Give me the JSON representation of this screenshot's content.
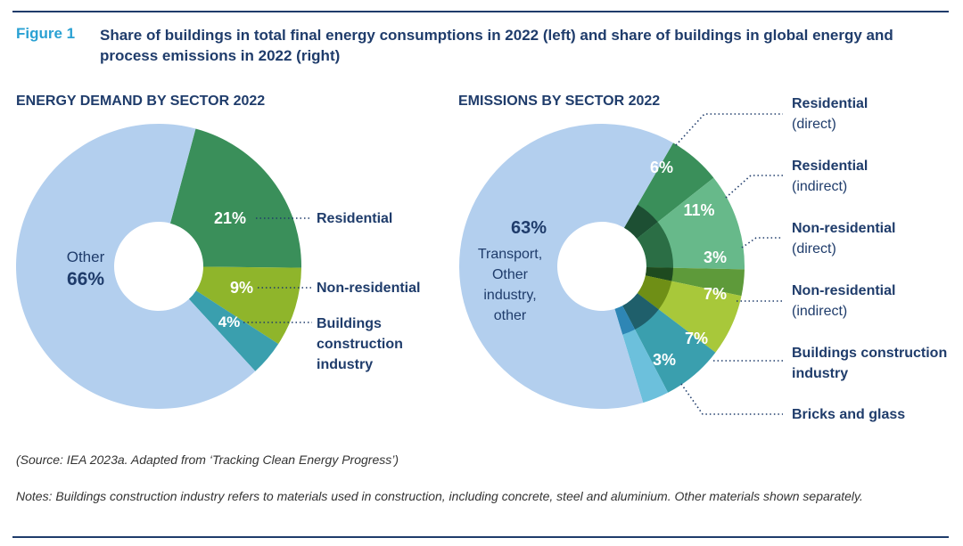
{
  "figure": {
    "label": "Figure 1",
    "title": "Share of buildings in total final energy consumptions in 2022 (left) and share of buildings in global energy and process emissions in 2022 (right)"
  },
  "chart_data": [
    {
      "type": "pie",
      "title": "ENERGY DEMAND  BY SECTOR 2022",
      "slices": [
        {
          "label": "Residential",
          "value": 21,
          "value_label": "21%",
          "color": "#3a8f5a"
        },
        {
          "label": "Non-residential",
          "value": 9,
          "value_label": "9%",
          "color": "#8fb52b"
        },
        {
          "label": "Buildings construction industry",
          "value": 4,
          "value_label": "4%",
          "color": "#3a9fae"
        },
        {
          "label": "Other",
          "value": 66,
          "value_label": "66%",
          "color": "#b3cfee"
        }
      ]
    },
    {
      "type": "pie",
      "title": "EMISSIONS BY SECTOR 2022",
      "slices": [
        {
          "label": "Residential (direct)",
          "value": 6,
          "value_label": "6%",
          "color": "#3a8f5a"
        },
        {
          "label": "Residential (indirect)",
          "value": 11,
          "value_label": "11%",
          "color": "#67b98a"
        },
        {
          "label": "Non-residential (direct)",
          "value": 3,
          "value_label": "3%",
          "color": "#5e9a3a"
        },
        {
          "label": "Non-residential (indirect)",
          "value": 7,
          "value_label": "7%",
          "color": "#a8c83a"
        },
        {
          "label": "Buildings construction industry",
          "value": 7,
          "value_label": "7%",
          "color": "#3a9fae"
        },
        {
          "label": "Bricks and glass",
          "value": 3,
          "value_label": "3%",
          "color": "#6cc0dc"
        },
        {
          "label": "Transport, Other industry, other",
          "value": 63,
          "value_label": "63%",
          "color": "#b3cfee"
        }
      ]
    }
  ],
  "labels": {
    "left_other_name": "Other",
    "left_other_pct": "66%",
    "left_residential": "Residential",
    "left_nonres": "Non-residential",
    "left_bci_lines": [
      "Buildings",
      "construction",
      "industry"
    ],
    "right_other_pct": "63%",
    "right_other_lines": [
      "Transport,",
      "Other",
      "industry,",
      "other"
    ],
    "right_res_direct": [
      "Residential",
      "(direct)"
    ],
    "right_res_indirect": [
      "Residential",
      "(indirect)"
    ],
    "right_nonres_direct": [
      "Non-residential",
      "(direct)"
    ],
    "right_nonres_indirect": [
      "Non-residential",
      "(indirect)"
    ],
    "right_bci": [
      "Buildings construction",
      "industry"
    ],
    "right_bricks": "Bricks and glass"
  },
  "source": "(Source: IEA 2023a. Adapted from ‘Tracking Clean Energy Progress’)",
  "notes": "Notes: Buildings construction industry refers to materials used in construction, including concrete, steel and aluminium. Other materials shown separately."
}
